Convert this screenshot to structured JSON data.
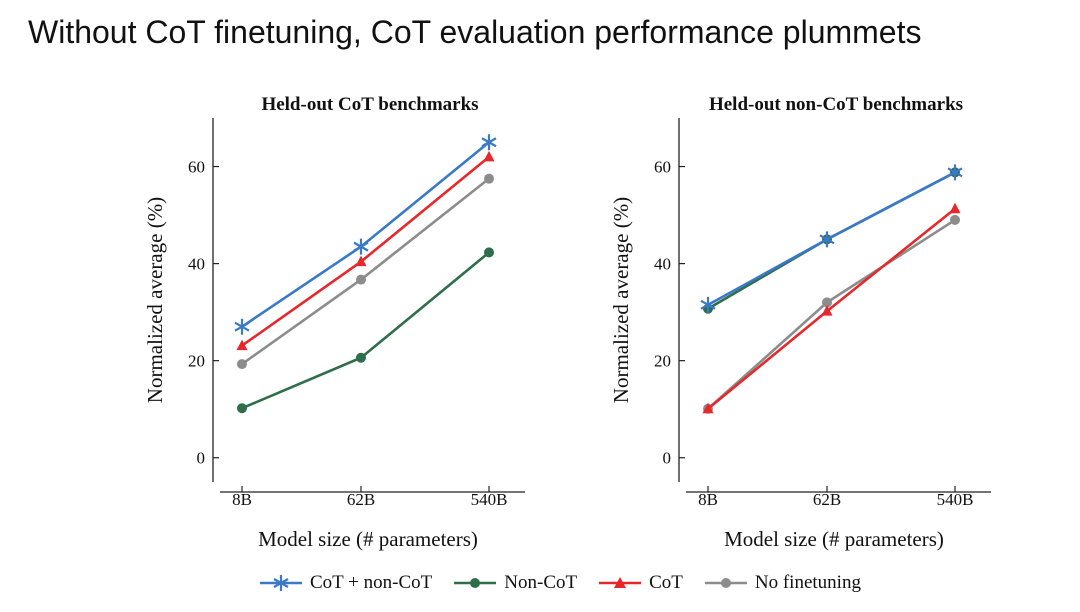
{
  "slide": {
    "title": "Without CoT finetuning, CoT evaluation performance plummets"
  },
  "colors": {
    "cot_plus_noncot": "#3a78c9",
    "noncot": "#2e6e4a",
    "cot": "#e8272a",
    "no_finetuning": "#8c8c8c",
    "axis": "#222222"
  },
  "legend": {
    "items": [
      {
        "label": "CoT + non-CoT",
        "icon": "star-icon"
      },
      {
        "label": "Non-CoT",
        "icon": "circle-icon"
      },
      {
        "label": "CoT",
        "icon": "triangle-icon"
      },
      {
        "label": "No finetuning",
        "icon": "circle-icon"
      }
    ]
  },
  "chart_data": [
    {
      "type": "line",
      "title": "Held-out CoT benchmarks",
      "xlabel": "Model size (# parameters)",
      "ylabel": "Normalized average (%)",
      "categories": [
        "8B",
        "62B",
        "540B"
      ],
      "ylim": [
        -5,
        70
      ],
      "yticks": [
        0,
        20,
        40,
        60
      ],
      "series": [
        {
          "name": "CoT + non-CoT",
          "marker": "star",
          "values": [
            27,
            43.5,
            65
          ]
        },
        {
          "name": "Non-CoT",
          "marker": "circle",
          "values": [
            10.2,
            20.6,
            42.3
          ]
        },
        {
          "name": "CoT",
          "marker": "triangle",
          "values": [
            23.1,
            40.4,
            62
          ]
        },
        {
          "name": "No finetuning",
          "marker": "circle",
          "values": [
            19.3,
            36.7,
            57.5
          ]
        }
      ]
    },
    {
      "type": "line",
      "title": "Held-out non-CoT benchmarks",
      "xlabel": "Model size (# parameters)",
      "ylabel": "Normalized average (%)",
      "categories": [
        "8B",
        "62B",
        "540B"
      ],
      "ylim": [
        -5,
        70
      ],
      "yticks": [
        0,
        20,
        40,
        60
      ],
      "series": [
        {
          "name": "Non-CoT",
          "marker": "circle",
          "values": [
            30.7,
            45,
            58.8
          ]
        },
        {
          "name": "CoT + non-CoT",
          "marker": "star",
          "values": [
            31.5,
            45,
            58.8
          ]
        },
        {
          "name": "No finetuning",
          "marker": "circle",
          "values": [
            10.1,
            32,
            49
          ]
        },
        {
          "name": "CoT",
          "marker": "triangle",
          "values": [
            10.1,
            30.2,
            51.3
          ]
        }
      ]
    }
  ]
}
